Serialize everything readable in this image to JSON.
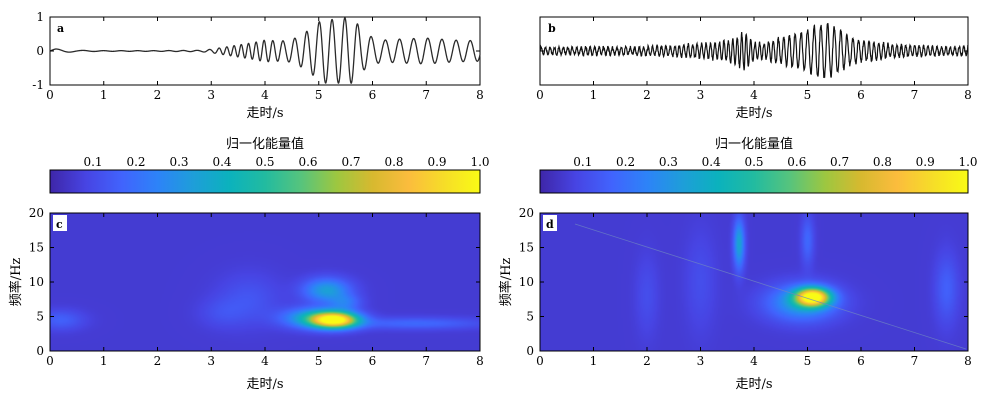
{
  "colormap": [
    "#3e26a8",
    "#4744e3",
    "#4163fd",
    "#2d83f8",
    "#1e9ed9",
    "#0bb2bd",
    "#22bba0",
    "#56c47d",
    "#9dc740",
    "#d7b92f",
    "#fbbc3d",
    "#f6dd28",
    "#f9fb15"
  ],
  "colorbar": {
    "title": "归一化能量值",
    "ticks": [
      "0.1",
      "0.2",
      "0.3",
      "0.4",
      "0.5",
      "0.6",
      "0.7",
      "0.8",
      "0.9",
      "1.0"
    ],
    "range": [
      0.0,
      1.0
    ]
  },
  "chart_data": [
    {
      "panel": "a",
      "type": "line",
      "xlabel": "走时/s",
      "ylabel": "",
      "xlim": [
        0,
        8
      ],
      "ylim": [
        -1,
        1
      ],
      "xticks": [
        "0",
        "1",
        "2",
        "3",
        "4",
        "5",
        "6",
        "7",
        "8"
      ],
      "yticks": [
        "1",
        "0",
        "-1"
      ],
      "series": [
        {
          "x": [
            0.0,
            0.1,
            0.5,
            1.0,
            2.0,
            2.8,
            3.0,
            3.2,
            3.4,
            3.6,
            3.8,
            4.0,
            4.2,
            4.4,
            4.6,
            4.8,
            4.9,
            5.0,
            5.1,
            5.2,
            5.4,
            5.5,
            5.6,
            5.7,
            5.8,
            6.0,
            6.2,
            6.5,
            7.0,
            7.5,
            8.0
          ],
          "envelope": [
            0.05,
            0.06,
            0.02,
            0.01,
            0.01,
            0.02,
            0.05,
            0.1,
            0.15,
            0.2,
            0.25,
            0.32,
            0.3,
            0.3,
            0.4,
            0.6,
            0.72,
            0.85,
            0.95,
            0.92,
            0.95,
            0.98,
            0.95,
            0.85,
            0.6,
            0.4,
            0.32,
            0.35,
            0.38,
            0.32,
            0.3
          ],
          "frequency_hz": [
            2.0,
            2.0,
            2.0,
            3.0,
            3.5,
            4.0,
            5.0,
            7.0,
            7.5,
            7.5,
            7.0,
            6.5,
            5.5,
            4.5,
            4.5,
            4.5,
            4.2,
            4.2,
            4.2,
            4.2,
            4.2,
            4.2,
            4.2,
            4.2,
            4.0,
            3.8,
            3.8,
            3.8,
            3.8,
            3.8,
            3.8
          ]
        }
      ]
    },
    {
      "panel": "b",
      "type": "line",
      "xlabel": "走时/s",
      "ylabel": "",
      "xlim": [
        0,
        8
      ],
      "ylim": [
        -1,
        1
      ],
      "xticks": [
        "0",
        "1",
        "2",
        "3",
        "4",
        "5",
        "6",
        "7",
        "8"
      ],
      "yticks": [],
      "series": [
        {
          "x": [
            0.0,
            0.5,
            1.0,
            1.5,
            2.0,
            2.5,
            3.0,
            3.5,
            3.7,
            3.8,
            3.9,
            4.0,
            4.2,
            4.5,
            4.8,
            5.0,
            5.2,
            5.3,
            5.5,
            5.8,
            6.0,
            6.5,
            7.0,
            7.5,
            8.0
          ],
          "envelope": [
            0.1,
            0.1,
            0.12,
            0.1,
            0.12,
            0.15,
            0.2,
            0.3,
            0.4,
            0.55,
            0.4,
            0.25,
            0.22,
            0.4,
            0.5,
            0.6,
            0.75,
            0.8,
            0.7,
            0.4,
            0.3,
            0.2,
            0.15,
            0.12,
            0.12
          ],
          "frequency_hz": [
            12,
            12,
            12,
            12,
            12,
            12,
            12,
            12,
            12,
            12,
            12,
            12,
            12,
            10,
            9,
            8,
            8,
            8,
            8,
            9,
            10,
            12,
            12,
            12,
            12
          ]
        }
      ]
    },
    {
      "panel": "c",
      "type": "heatmap",
      "xlabel": "走时/s",
      "ylabel": "频率/Hz",
      "xlim": [
        0,
        8
      ],
      "ylim": [
        0,
        20
      ],
      "xticks": [
        "0",
        "1",
        "2",
        "3",
        "4",
        "5",
        "6",
        "7",
        "8"
      ],
      "yticks": [
        "0",
        "5",
        "10",
        "15",
        "20"
      ],
      "background": 0.06,
      "blobs": [
        {
          "t": 5.3,
          "f": 4.5,
          "st": 0.3,
          "sf": 0.8,
          "amp": 0.94
        },
        {
          "t": 4.9,
          "f": 4.8,
          "st": 0.4,
          "sf": 1.0,
          "amp": 0.3
        },
        {
          "t": 5.15,
          "f": 8.8,
          "st": 0.3,
          "sf": 1.2,
          "amp": 0.28
        },
        {
          "t": 5.5,
          "f": 7.0,
          "st": 0.2,
          "sf": 0.8,
          "amp": 0.14
        },
        {
          "t": 6.8,
          "f": 4.0,
          "st": 0.9,
          "sf": 0.6,
          "amp": 0.12
        },
        {
          "t": 0.2,
          "f": 4.5,
          "st": 0.3,
          "sf": 1.0,
          "amp": 0.1
        },
        {
          "t": 3.7,
          "f": 7.5,
          "st": 0.4,
          "sf": 2.5,
          "amp": 0.07
        },
        {
          "t": 3.2,
          "f": 5.5,
          "st": 0.3,
          "sf": 1.5,
          "amp": 0.05
        }
      ]
    },
    {
      "panel": "d",
      "type": "heatmap",
      "xlabel": "走时/s",
      "ylabel": "频率/Hz",
      "xlim": [
        0,
        8
      ],
      "ylim": [
        0,
        20
      ],
      "xticks": [
        "0",
        "1",
        "2",
        "3",
        "4",
        "5",
        "6",
        "7",
        "8"
      ],
      "yticks": [
        "0",
        "5",
        "10",
        "15",
        "20"
      ],
      "background": 0.06,
      "blobs": [
        {
          "t": 5.1,
          "f": 7.8,
          "st": 0.22,
          "sf": 0.9,
          "amp": 0.93
        },
        {
          "t": 4.9,
          "f": 7.0,
          "st": 0.45,
          "sf": 1.8,
          "amp": 0.28
        },
        {
          "t": 3.72,
          "f": 15.5,
          "st": 0.07,
          "sf": 2.5,
          "amp": 0.3
        },
        {
          "t": 5.0,
          "f": 16.0,
          "st": 0.08,
          "sf": 2.5,
          "amp": 0.12
        },
        {
          "t": 7.6,
          "f": 9.0,
          "st": 0.15,
          "sf": 3.5,
          "amp": 0.1
        },
        {
          "t": 2.0,
          "f": 8.0,
          "st": 0.15,
          "sf": 4.0,
          "amp": 0.05
        },
        {
          "t": 3.0,
          "f": 10.0,
          "st": 0.2,
          "sf": 5.0,
          "amp": 0.05
        }
      ]
    }
  ]
}
